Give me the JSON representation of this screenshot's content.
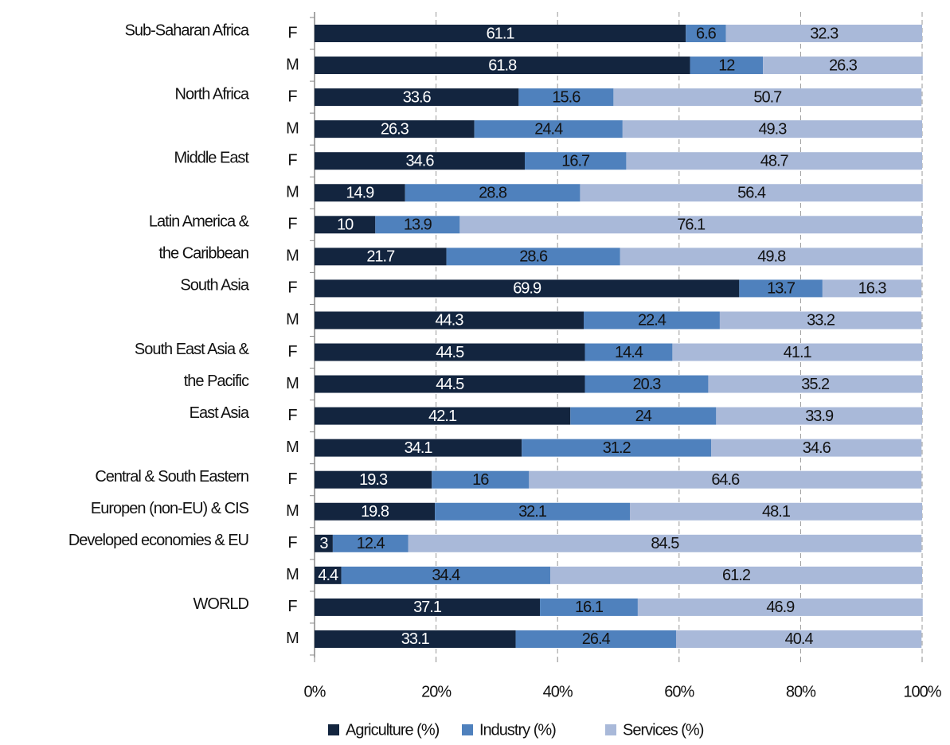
{
  "chart_data": {
    "type": "stacked_barh",
    "groups": [
      [
        "Sub-Saharan Africa"
      ],
      [
        "North Africa"
      ],
      [
        "Middle East"
      ],
      [
        "Latin America &",
        "the Caribbean"
      ],
      [
        "South Asia"
      ],
      [
        "South East Asia &",
        "the Pacific"
      ],
      [
        "East Asia"
      ],
      [
        "Central & South Eastern",
        "Europen (non-EU) & CIS"
      ],
      [
        "Developed economies & EU"
      ],
      [
        "WORLD"
      ]
    ],
    "categories": [
      "F",
      "M",
      "F",
      "M",
      "F",
      "M",
      "F",
      "M",
      "F",
      "M",
      "F",
      "M",
      "F",
      "M",
      "F",
      "M",
      "F",
      "M",
      "F",
      "M"
    ],
    "series": [
      {
        "name": "Agriculture (%)",
        "color": "#13253f",
        "label_color": "#ffffff",
        "values": [
          61.1,
          61.8,
          33.6,
          26.3,
          34.6,
          14.9,
          10,
          21.7,
          69.9,
          44.3,
          44.5,
          44.5,
          42.1,
          34.1,
          19.3,
          19.8,
          3,
          4.4,
          37.1,
          33.1
        ]
      },
      {
        "name": "Industry (%)",
        "color": "#4f81bd",
        "label_color": "#111111",
        "values": [
          6.6,
          12,
          15.6,
          24.4,
          16.7,
          28.8,
          13.9,
          28.6,
          13.7,
          22.4,
          14.4,
          20.3,
          24,
          31.2,
          16,
          32.1,
          12.4,
          34.4,
          16.1,
          26.4
        ]
      },
      {
        "name": "Services (%)",
        "color": "#a9b9d9",
        "label_color": "#111111",
        "values": [
          32.3,
          26.3,
          50.7,
          49.3,
          48.7,
          56.4,
          76.1,
          49.8,
          16.3,
          33.2,
          41.1,
          35.2,
          33.9,
          34.6,
          64.6,
          48.1,
          84.5,
          61.2,
          46.9,
          40.4
        ]
      }
    ],
    "xlim": [
      0,
      100
    ],
    "xticks": [
      {
        "value": 0,
        "label": "0%"
      },
      {
        "value": 20,
        "label": "20%"
      },
      {
        "value": 40,
        "label": "40%"
      },
      {
        "value": 60,
        "label": "60%"
      },
      {
        "value": 80,
        "label": "80%"
      },
      {
        "value": 100,
        "label": "100%"
      }
    ],
    "grid": true,
    "legend": "bottom"
  }
}
